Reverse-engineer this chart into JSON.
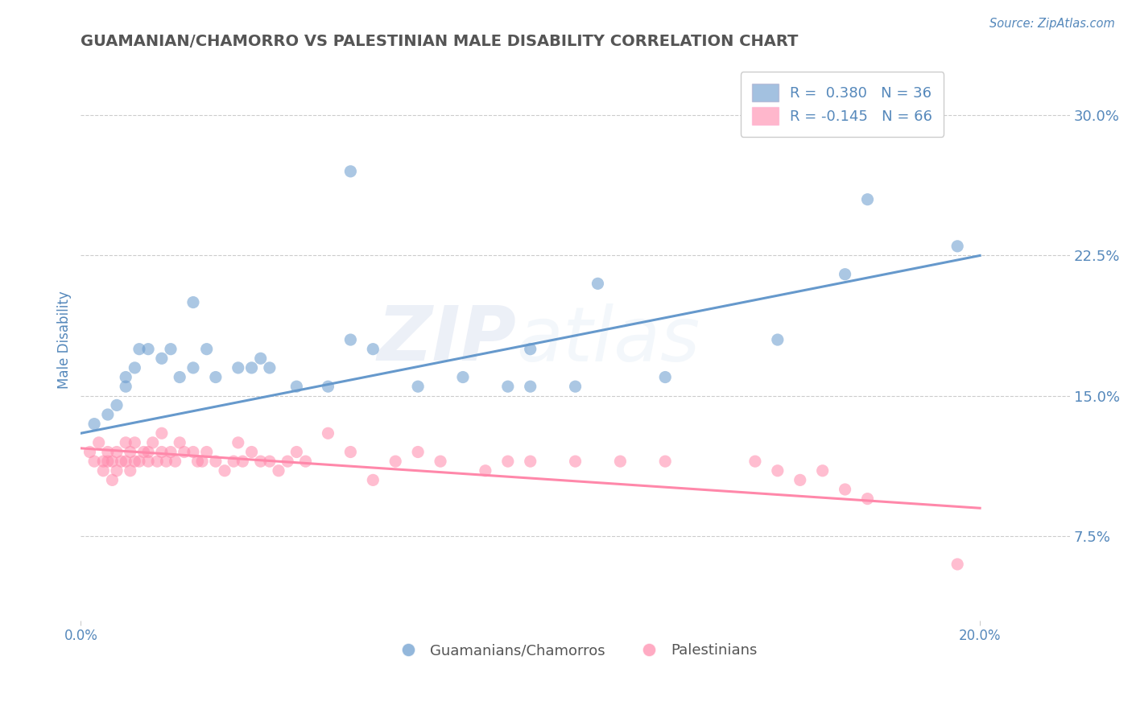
{
  "title": "GUAMANIAN/CHAMORRO VS PALESTINIAN MALE DISABILITY CORRELATION CHART",
  "source": "Source: ZipAtlas.com",
  "ylabel": "Male Disability",
  "xlim": [
    0.0,
    0.22
  ],
  "ylim": [
    0.03,
    0.33
  ],
  "yticks": [
    0.075,
    0.15,
    0.225,
    0.3
  ],
  "ytick_labels": [
    "7.5%",
    "15.0%",
    "22.5%",
    "30.0%"
  ],
  "xtick_positions": [
    0.0,
    0.2
  ],
  "xtick_labels": [
    "0.0%",
    "20.0%"
  ],
  "blue_color": "#6699CC",
  "pink_color": "#FF88AA",
  "blue_scatter_x": [
    0.003,
    0.006,
    0.008,
    0.01,
    0.01,
    0.012,
    0.013,
    0.015,
    0.018,
    0.02,
    0.022,
    0.025,
    0.025,
    0.028,
    0.03,
    0.035,
    0.038,
    0.04,
    0.042,
    0.048,
    0.055,
    0.06,
    0.065,
    0.075,
    0.085,
    0.095,
    0.1,
    0.11,
    0.115,
    0.13,
    0.155,
    0.17,
    0.175,
    0.06,
    0.1,
    0.195
  ],
  "blue_scatter_y": [
    0.135,
    0.14,
    0.145,
    0.155,
    0.16,
    0.165,
    0.175,
    0.175,
    0.17,
    0.175,
    0.16,
    0.165,
    0.2,
    0.175,
    0.16,
    0.165,
    0.165,
    0.17,
    0.165,
    0.155,
    0.155,
    0.18,
    0.175,
    0.155,
    0.16,
    0.155,
    0.175,
    0.155,
    0.21,
    0.16,
    0.18,
    0.215,
    0.255,
    0.27,
    0.155,
    0.23
  ],
  "pink_scatter_x": [
    0.002,
    0.003,
    0.004,
    0.005,
    0.005,
    0.006,
    0.006,
    0.007,
    0.007,
    0.008,
    0.008,
    0.009,
    0.01,
    0.01,
    0.011,
    0.011,
    0.012,
    0.012,
    0.013,
    0.014,
    0.015,
    0.015,
    0.016,
    0.017,
    0.018,
    0.018,
    0.019,
    0.02,
    0.021,
    0.022,
    0.023,
    0.025,
    0.026,
    0.027,
    0.028,
    0.03,
    0.032,
    0.034,
    0.035,
    0.036,
    0.038,
    0.04,
    0.042,
    0.044,
    0.046,
    0.048,
    0.05,
    0.055,
    0.06,
    0.065,
    0.07,
    0.075,
    0.08,
    0.09,
    0.095,
    0.1,
    0.11,
    0.12,
    0.13,
    0.15,
    0.155,
    0.16,
    0.165,
    0.17,
    0.175,
    0.195
  ],
  "pink_scatter_y": [
    0.12,
    0.115,
    0.125,
    0.11,
    0.115,
    0.115,
    0.12,
    0.105,
    0.115,
    0.11,
    0.12,
    0.115,
    0.125,
    0.115,
    0.11,
    0.12,
    0.115,
    0.125,
    0.115,
    0.12,
    0.115,
    0.12,
    0.125,
    0.115,
    0.13,
    0.12,
    0.115,
    0.12,
    0.115,
    0.125,
    0.12,
    0.12,
    0.115,
    0.115,
    0.12,
    0.115,
    0.11,
    0.115,
    0.125,
    0.115,
    0.12,
    0.115,
    0.115,
    0.11,
    0.115,
    0.12,
    0.115,
    0.13,
    0.12,
    0.105,
    0.115,
    0.12,
    0.115,
    0.11,
    0.115,
    0.115,
    0.115,
    0.115,
    0.115,
    0.115,
    0.11,
    0.105,
    0.11,
    0.1,
    0.095,
    0.06
  ],
  "blue_line_x": [
    0.0,
    0.2
  ],
  "blue_line_y": [
    0.13,
    0.225
  ],
  "pink_line_x": [
    0.0,
    0.2
  ],
  "pink_line_y": [
    0.122,
    0.09
  ],
  "legend_line1": "R =  0.380   N = 36",
  "legend_line2": "R = -0.145   N = 66",
  "label_blue": "Guamanians/Chamorros",
  "label_pink": "Palestinians",
  "watermark_zip": "ZIP",
  "watermark_atlas": "atlas",
  "background_color": "#FFFFFF",
  "grid_color": "#CCCCCC",
  "axis_color": "#5588BB",
  "title_color": "#555555"
}
